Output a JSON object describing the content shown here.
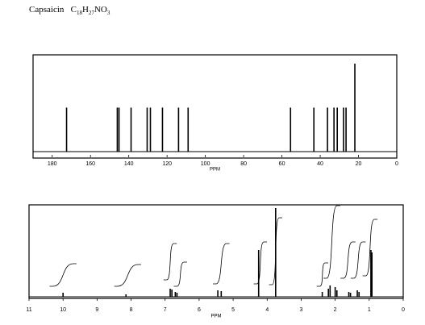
{
  "title": "Capsaicin",
  "formula": [
    "C",
    "18",
    "H",
    "27",
    "NO",
    "3"
  ],
  "chart_data": [
    {
      "type": "stick",
      "xlabel": "PPM",
      "xlim": [
        190,
        0
      ],
      "xticks": [
        180,
        160,
        140,
        120,
        100,
        80,
        60,
        40,
        20,
        0
      ],
      "ylim": [
        0,
        1.1
      ],
      "color": "#000000",
      "x": [
        172.5,
        146.0,
        145.1,
        138.8,
        130.4,
        128.7,
        122.4,
        114.0,
        109.0,
        55.5,
        43.3,
        36.2,
        32.8,
        31.1,
        27.8,
        26.5,
        21.9
      ],
      "values": [
        0.5,
        0.5,
        0.5,
        0.5,
        0.5,
        0.5,
        0.5,
        0.5,
        0.5,
        0.5,
        0.5,
        0.5,
        0.5,
        0.5,
        0.5,
        0.5,
        1.0
      ]
    },
    {
      "type": "stick",
      "xlabel": "PPM",
      "xlim": [
        11,
        0
      ],
      "xticks": [
        11,
        10,
        9,
        8,
        7,
        6,
        5,
        4,
        3,
        2,
        1,
        0
      ],
      "ylim": [
        0,
        1.14
      ],
      "color": "#000000",
      "x": [
        10.0,
        8.15,
        6.85,
        6.8,
        6.7,
        6.65,
        5.45,
        5.35,
        4.25,
        3.75,
        2.38,
        2.2,
        2.15,
        2.0,
        1.95,
        1.6,
        1.55,
        1.35,
        1.3,
        0.95,
        0.92
      ],
      "values": [
        0.05,
        0.03,
        0.1,
        0.09,
        0.06,
        0.05,
        0.08,
        0.07,
        0.58,
        1.1,
        0.06,
        0.1,
        0.14,
        0.12,
        0.08,
        0.06,
        0.05,
        0.08,
        0.06,
        0.58,
        0.55
      ],
      "integrals": {
        "from": [
          10.3,
          8.4,
          6.95,
          6.65,
          5.5,
          4.3,
          3.85,
          2.45,
          2.25,
          1.75,
          1.45,
          1.1
        ],
        "to": [
          9.7,
          7.8,
          6.75,
          6.45,
          5.2,
          4.1,
          3.65,
          2.3,
          1.95,
          1.5,
          1.2,
          0.85
        ],
        "base": [
          0.13,
          0.13,
          0.21,
          0.13,
          0.16,
          0.16,
          0.15,
          0.13,
          0.23,
          0.23,
          0.23,
          0.26
        ],
        "values": [
          0.28,
          0.27,
          0.45,
          0.3,
          0.5,
          0.52,
          0.83,
          0.29,
          0.9,
          0.45,
          0.45,
          0.7
        ]
      }
    }
  ]
}
